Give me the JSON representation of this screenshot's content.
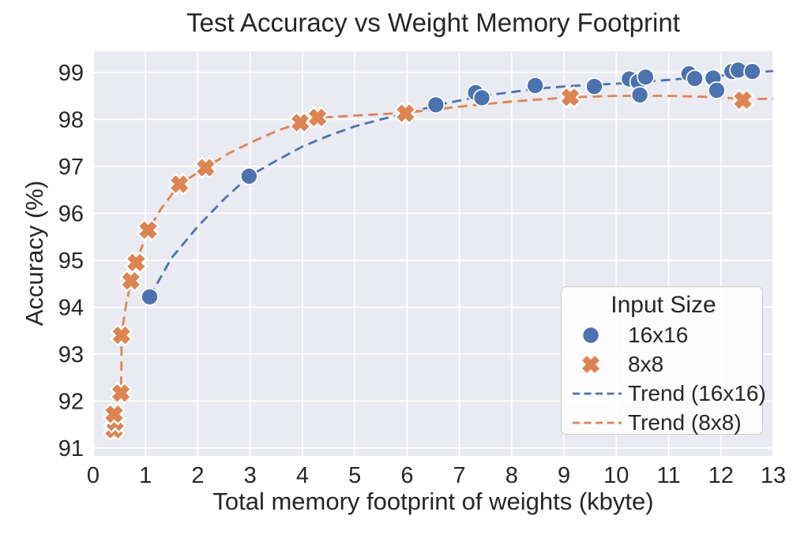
{
  "figure": {
    "title": "Test Accuracy vs Weight Memory Footprint"
  },
  "colors": {
    "blue": "#4C72B0",
    "orange": "#DD8452",
    "panel_background": "#EAEAF2",
    "gridline": "#FFFFFF",
    "text": "#262626",
    "legend_border": "#CCCCCC"
  },
  "legend": {
    "title": "Input Size",
    "position": "lower right",
    "items": [
      {
        "label": "16x16",
        "marker": "circle-icon",
        "color": "#4C72B0"
      },
      {
        "label": "8x8",
        "marker": "x-icon",
        "color": "#DD8452"
      },
      {
        "label": "Trend (16x16)",
        "marker": "dashed-line-icon",
        "color": "#4C72B0"
      },
      {
        "label": "Trend (8x8)",
        "marker": "dashed-line-icon",
        "color": "#DD8452"
      }
    ]
  },
  "chart_data": {
    "type": "scatter",
    "title": "Test Accuracy vs Weight Memory Footprint",
    "xlabel": "Total memory footprint of weights (kbyte)",
    "ylabel": "Accuracy (%)",
    "xlim": [
      0,
      13
    ],
    "ylim": [
      90.83,
      99.45
    ],
    "xticks": [
      0,
      1,
      2,
      3,
      4,
      5,
      6,
      7,
      8,
      9,
      10,
      11,
      12,
      13
    ],
    "yticks": [
      91,
      92,
      93,
      94,
      95,
      96,
      97,
      98,
      99
    ],
    "grid": true,
    "series": [
      {
        "name": "16x16",
        "kind": "scatter",
        "marker": "circle",
        "color": "#4C72B0",
        "points": [
          [
            1.08,
            94.22
          ],
          [
            2.98,
            96.79
          ],
          [
            6.55,
            98.31
          ],
          [
            7.31,
            98.57
          ],
          [
            7.43,
            98.46
          ],
          [
            8.45,
            98.72
          ],
          [
            9.58,
            98.7
          ],
          [
            10.25,
            98.86
          ],
          [
            10.42,
            98.8
          ],
          [
            10.56,
            98.9
          ],
          [
            10.45,
            98.52
          ],
          [
            11.39,
            98.97
          ],
          [
            11.5,
            98.87
          ],
          [
            11.85,
            98.88
          ],
          [
            11.92,
            98.62
          ],
          [
            12.21,
            99.02
          ],
          [
            12.33,
            99.05
          ],
          [
            12.6,
            99.02
          ]
        ]
      },
      {
        "name": "8x8",
        "kind": "scatter",
        "marker": "X",
        "color": "#DD8452",
        "points": [
          [
            0.4,
            91.39
          ],
          [
            0.42,
            91.55
          ],
          [
            0.4,
            91.72
          ],
          [
            0.53,
            92.17
          ],
          [
            0.54,
            93.4
          ],
          [
            0.72,
            94.56
          ],
          [
            0.82,
            94.95
          ],
          [
            1.05,
            95.64
          ],
          [
            1.65,
            96.62
          ],
          [
            2.15,
            96.97
          ],
          [
            3.96,
            97.93
          ],
          [
            4.29,
            98.04
          ],
          [
            5.97,
            98.13
          ],
          [
            9.12,
            98.47
          ],
          [
            12.42,
            98.41
          ]
        ]
      },
      {
        "name": "Trend (16x16)",
        "kind": "dashed-line",
        "color": "#4C72B0",
        "points": [
          [
            1.08,
            94.22
          ],
          [
            1.5,
            95.05
          ],
          [
            2.0,
            95.72
          ],
          [
            2.5,
            96.3
          ],
          [
            2.98,
            96.79
          ],
          [
            3.5,
            97.12
          ],
          [
            4.0,
            97.42
          ],
          [
            4.5,
            97.65
          ],
          [
            5.0,
            97.85
          ],
          [
            5.5,
            98.0
          ],
          [
            6.0,
            98.12
          ],
          [
            6.55,
            98.3
          ],
          [
            7.0,
            98.4
          ],
          [
            7.43,
            98.5
          ],
          [
            8.0,
            98.58
          ],
          [
            8.45,
            98.65
          ],
          [
            9.0,
            98.7
          ],
          [
            9.58,
            98.74
          ],
          [
            10.0,
            98.76
          ],
          [
            10.5,
            98.8
          ],
          [
            11.0,
            98.84
          ],
          [
            11.5,
            98.89
          ],
          [
            12.0,
            98.93
          ],
          [
            12.5,
            98.98
          ],
          [
            13.0,
            99.03
          ]
        ]
      },
      {
        "name": "Trend (8x8)",
        "kind": "dashed-line",
        "color": "#DD8452",
        "points": [
          [
            0.4,
            91.39
          ],
          [
            0.41,
            91.6
          ],
          [
            0.4,
            91.75
          ],
          [
            0.46,
            92.0
          ],
          [
            0.53,
            92.2
          ],
          [
            0.54,
            92.8
          ],
          [
            0.54,
            93.4
          ],
          [
            0.62,
            94.0
          ],
          [
            0.72,
            94.56
          ],
          [
            0.82,
            94.95
          ],
          [
            1.05,
            95.64
          ],
          [
            1.3,
            96.1
          ],
          [
            1.65,
            96.62
          ],
          [
            2.15,
            96.97
          ],
          [
            2.6,
            97.28
          ],
          [
            3.0,
            97.5
          ],
          [
            3.5,
            97.75
          ],
          [
            3.96,
            97.93
          ],
          [
            4.29,
            98.03
          ],
          [
            5.0,
            98.08
          ],
          [
            5.97,
            98.14
          ],
          [
            7.0,
            98.27
          ],
          [
            8.0,
            98.38
          ],
          [
            9.12,
            98.47
          ],
          [
            10.0,
            98.5
          ],
          [
            11.0,
            98.5
          ],
          [
            12.0,
            98.47
          ],
          [
            12.42,
            98.43
          ],
          [
            13.0,
            98.44
          ]
        ]
      }
    ]
  }
}
